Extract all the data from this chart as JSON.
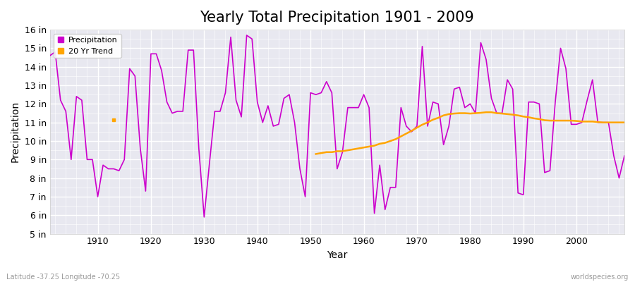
{
  "title": "Yearly Total Precipitation 1901 - 2009",
  "xlabel": "Year",
  "ylabel": "Precipitation",
  "years": [
    1901,
    1902,
    1903,
    1904,
    1905,
    1906,
    1907,
    1908,
    1909,
    1910,
    1911,
    1912,
    1913,
    1914,
    1915,
    1916,
    1917,
    1918,
    1919,
    1920,
    1921,
    1922,
    1923,
    1924,
    1925,
    1926,
    1927,
    1928,
    1929,
    1930,
    1931,
    1932,
    1933,
    1934,
    1935,
    1936,
    1937,
    1938,
    1939,
    1940,
    1941,
    1942,
    1943,
    1944,
    1945,
    1946,
    1947,
    1948,
    1949,
    1950,
    1951,
    1952,
    1953,
    1954,
    1955,
    1956,
    1957,
    1958,
    1959,
    1960,
    1961,
    1962,
    1963,
    1964,
    1965,
    1966,
    1967,
    1968,
    1969,
    1970,
    1971,
    1972,
    1973,
    1974,
    1975,
    1976,
    1977,
    1978,
    1979,
    1980,
    1981,
    1982,
    1983,
    1984,
    1985,
    1986,
    1987,
    1988,
    1989,
    1990,
    1991,
    1992,
    1993,
    1994,
    1995,
    1996,
    1997,
    1998,
    1999,
    2000,
    2001,
    2002,
    2003,
    2004,
    2005,
    2006,
    2007,
    2008,
    2009
  ],
  "precip": [
    14.6,
    14.8,
    12.2,
    11.6,
    9.0,
    12.4,
    12.2,
    9.0,
    9.0,
    7.0,
    8.7,
    8.5,
    8.5,
    8.4,
    9.0,
    13.9,
    13.5,
    9.6,
    7.3,
    14.7,
    14.7,
    13.8,
    12.1,
    11.5,
    11.6,
    11.6,
    14.9,
    14.9,
    9.6,
    5.9,
    8.8,
    11.6,
    11.6,
    12.6,
    15.6,
    12.2,
    11.3,
    15.7,
    15.5,
    12.1,
    11.0,
    11.9,
    10.8,
    10.9,
    12.3,
    12.5,
    11.0,
    8.5,
    7.0,
    12.6,
    12.5,
    12.6,
    13.2,
    12.6,
    8.5,
    9.4,
    11.8,
    11.8,
    11.8,
    12.5,
    11.8,
    6.1,
    8.7,
    6.3,
    7.5,
    7.5,
    11.8,
    10.8,
    10.5,
    10.8,
    15.1,
    10.8,
    12.1,
    12.0,
    9.8,
    10.8,
    12.8,
    12.9,
    11.8,
    12.0,
    11.5,
    15.3,
    14.4,
    12.3,
    11.5,
    11.5,
    13.3,
    12.8,
    7.2,
    7.1,
    12.1,
    12.1,
    12.0,
    8.3,
    8.4,
    12.1,
    15.0,
    13.9,
    10.9,
    10.9,
    11.0,
    12.2,
    13.3,
    11.0,
    11.0,
    11.0,
    9.2,
    8.0,
    9.2
  ],
  "trend_years": [
    1951,
    1952,
    1953,
    1954,
    1955,
    1956,
    1957,
    1958,
    1959,
    1960,
    1961,
    1962,
    1963,
    1964,
    1965,
    1966,
    1967,
    1968,
    1969,
    1970,
    1971,
    1972,
    1973,
    1974,
    1975,
    1976,
    1977,
    1978,
    1979,
    1980,
    1981,
    1982,
    1983,
    1984,
    1985,
    1986,
    1987,
    1988,
    1989,
    1990,
    1991,
    1992,
    1993,
    1994,
    1995,
    1996,
    1997,
    1998,
    1999,
    2000,
    2001,
    2002,
    2003,
    2004,
    2005,
    2006,
    2007,
    2008,
    2009
  ],
  "trend_values": [
    9.3,
    9.35,
    9.4,
    9.4,
    9.45,
    9.45,
    9.5,
    9.55,
    9.6,
    9.65,
    9.7,
    9.75,
    9.85,
    9.9,
    10.0,
    10.1,
    10.25,
    10.4,
    10.55,
    10.72,
    10.88,
    11.0,
    11.15,
    11.25,
    11.38,
    11.45,
    11.48,
    11.5,
    11.5,
    11.48,
    11.5,
    11.52,
    11.55,
    11.55,
    11.5,
    11.48,
    11.45,
    11.42,
    11.38,
    11.32,
    11.28,
    11.22,
    11.18,
    11.12,
    11.1,
    11.1,
    11.1,
    11.1,
    11.1,
    11.08,
    11.05,
    11.05,
    11.05,
    11.02,
    11.0,
    11.0,
    11.0,
    11.0,
    11.0
  ],
  "single_trend_year": 1913,
  "single_trend_value": 11.15,
  "precip_color": "#CC00CC",
  "trend_color": "#FFA500",
  "fig_bg_color": "#FFFFFF",
  "plot_bg_color": "#E8E8F0",
  "ylim": [
    5,
    16
  ],
  "yticks": [
    5,
    6,
    7,
    8,
    9,
    10,
    11,
    12,
    13,
    14,
    15,
    16
  ],
  "ytick_labels": [
    "5 in",
    "6 in",
    "7 in",
    "8 in",
    "9 in",
    "10 in",
    "11 in",
    "12 in",
    "13 in",
    "14 in",
    "15 in",
    "16 in"
  ],
  "title_fontsize": 15,
  "axis_label_fontsize": 10,
  "tick_fontsize": 9,
  "lat_lon_text": "Latitude -37.25 Longitude -70.25",
  "watermark": "worldspecies.org"
}
